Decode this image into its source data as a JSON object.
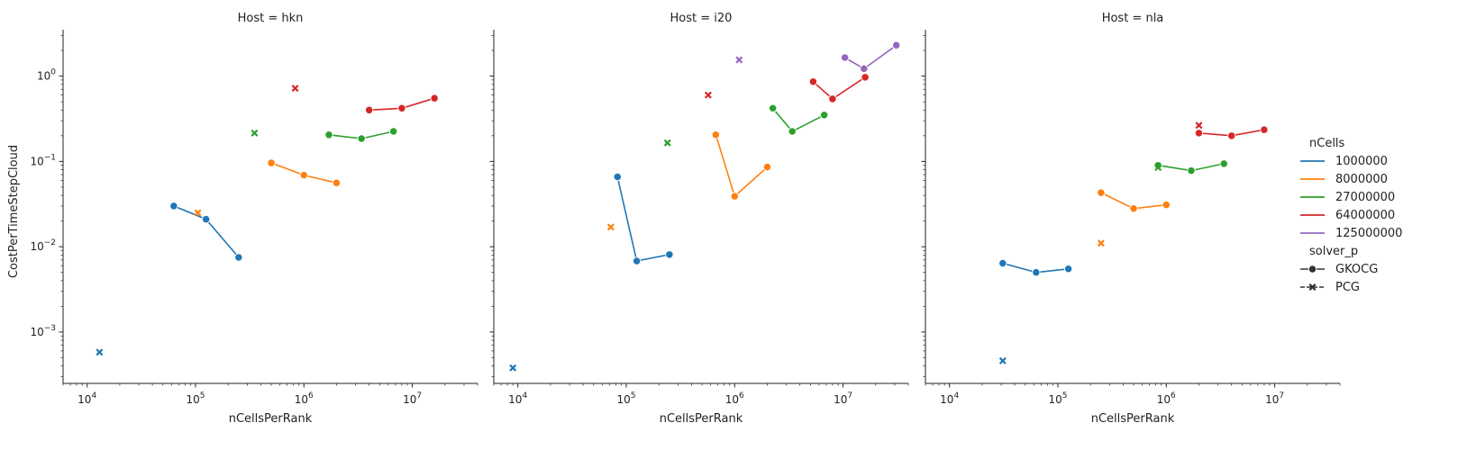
{
  "chart_data": {
    "type": "line",
    "scale": {
      "x": "log",
      "y": "log"
    },
    "xlim": [
      6000,
      40000000
    ],
    "ylim": [
      0.00025,
      3.5
    ],
    "xlabel": "nCellsPerRank",
    "ylabel": "CostPerTimeStepCloud",
    "x_ticks": [
      {
        "value": 10000,
        "base": "10",
        "exp": "4"
      },
      {
        "value": 100000,
        "base": "10",
        "exp": "5"
      },
      {
        "value": 1000000,
        "base": "10",
        "exp": "6"
      },
      {
        "value": 10000000,
        "base": "10",
        "exp": "7"
      }
    ],
    "y_ticks": [
      {
        "value": 0.001,
        "base": "10",
        "exp": "−3"
      },
      {
        "value": 0.01,
        "base": "10",
        "exp": "−2"
      },
      {
        "value": 0.1,
        "base": "10",
        "exp": "−1"
      },
      {
        "value": 1,
        "base": "10",
        "exp": "0"
      }
    ],
    "legend": {
      "placement": "right",
      "hue_title": "nCells",
      "hue_entries": [
        {
          "label": "1000000",
          "color": "#1f77b4"
        },
        {
          "label": "8000000",
          "color": "#ff7f0e"
        },
        {
          "label": "27000000",
          "color": "#2ca02c"
        },
        {
          "label": "64000000",
          "color": "#d62728"
        },
        {
          "label": "125000000",
          "color": "#9467bd"
        }
      ],
      "style_title": "solver_p",
      "style_entries": [
        {
          "label": "GKOCG",
          "marker": "circle"
        },
        {
          "label": "PCG",
          "marker": "x"
        }
      ]
    },
    "panels": [
      {
        "title": "Host = hkn",
        "series": [
          {
            "nCells": "1000000",
            "solver": "GKOCG",
            "points": [
              [
                63000,
                0.03
              ],
              [
                125000,
                0.021
              ],
              [
                250000,
                0.0075
              ]
            ]
          },
          {
            "nCells": "1000000",
            "solver": "PCG",
            "points": [
              [
                13000,
                0.00058
              ]
            ]
          },
          {
            "nCells": "8000000",
            "solver": "GKOCG",
            "points": [
              [
                500000,
                0.096
              ],
              [
                1000000,
                0.069
              ],
              [
                2000000,
                0.056
              ]
            ]
          },
          {
            "nCells": "8000000",
            "solver": "PCG",
            "points": [
              [
                105000,
                0.025
              ]
            ]
          },
          {
            "nCells": "27000000",
            "solver": "GKOCG",
            "points": [
              [
                1700000,
                0.205
              ],
              [
                3400000,
                0.185
              ],
              [
                6700000,
                0.225
              ]
            ]
          },
          {
            "nCells": "27000000",
            "solver": "PCG",
            "points": [
              [
                350000,
                0.215
              ]
            ]
          },
          {
            "nCells": "64000000",
            "solver": "GKOCG",
            "points": [
              [
                4000000,
                0.4
              ],
              [
                8000000,
                0.42
              ],
              [
                16000000,
                0.55
              ]
            ]
          },
          {
            "nCells": "64000000",
            "solver": "PCG",
            "points": [
              [
                830000,
                0.72
              ]
            ]
          }
        ]
      },
      {
        "title": "Host = i20",
        "series": [
          {
            "nCells": "1000000",
            "solver": "GKOCG",
            "points": [
              [
                83000,
                0.066
              ],
              [
                125000,
                0.0068
              ],
              [
                250000,
                0.0081
              ]
            ]
          },
          {
            "nCells": "1000000",
            "solver": "PCG",
            "points": [
              [
                9000,
                0.00038
              ]
            ]
          },
          {
            "nCells": "8000000",
            "solver": "GKOCG",
            "points": [
              [
                670000,
                0.205
              ],
              [
                1000000,
                0.039
              ],
              [
                2000000,
                0.086
              ]
            ]
          },
          {
            "nCells": "8000000",
            "solver": "PCG",
            "points": [
              [
                72000,
                0.017
              ]
            ]
          },
          {
            "nCells": "27000000",
            "solver": "GKOCG",
            "points": [
              [
                2250000,
                0.42
              ],
              [
                3400000,
                0.225
              ],
              [
                6700000,
                0.35
              ]
            ]
          },
          {
            "nCells": "27000000",
            "solver": "PCG",
            "points": [
              [
                240000,
                0.165
              ]
            ]
          },
          {
            "nCells": "64000000",
            "solver": "GKOCG",
            "points": [
              [
                5300000,
                0.86
              ],
              [
                8000000,
                0.54
              ],
              [
                16000000,
                0.97
              ]
            ]
          },
          {
            "nCells": "64000000",
            "solver": "PCG",
            "points": [
              [
                570000,
                0.6
              ]
            ]
          },
          {
            "nCells": "125000000",
            "solver": "GKOCG",
            "points": [
              [
                10400000,
                1.65
              ],
              [
                15600000,
                1.22
              ],
              [
                31000000,
                2.3
              ]
            ]
          },
          {
            "nCells": "125000000",
            "solver": "PCG",
            "points": [
              [
                1100000,
                1.55
              ]
            ]
          }
        ]
      },
      {
        "title": "Host = nla",
        "series": [
          {
            "nCells": "1000000",
            "solver": "GKOCG",
            "points": [
              [
                31000,
                0.0064
              ],
              [
                63000,
                0.005
              ],
              [
                125000,
                0.0055
              ]
            ]
          },
          {
            "nCells": "1000000",
            "solver": "PCG",
            "points": [
              [
                31000,
                0.00046
              ]
            ]
          },
          {
            "nCells": "8000000",
            "solver": "GKOCG",
            "points": [
              [
                250000,
                0.043
              ],
              [
                500000,
                0.028
              ],
              [
                1000000,
                0.031
              ]
            ]
          },
          {
            "nCells": "8000000",
            "solver": "PCG",
            "points": [
              [
                250000,
                0.011
              ]
            ]
          },
          {
            "nCells": "27000000",
            "solver": "GKOCG",
            "points": [
              [
                840000,
                0.09
              ],
              [
                1700000,
                0.078
              ],
              [
                3400000,
                0.094
              ]
            ]
          },
          {
            "nCells": "27000000",
            "solver": "PCG",
            "points": [
              [
                840000,
                0.085
              ]
            ]
          },
          {
            "nCells": "64000000",
            "solver": "GKOCG",
            "points": [
              [
                2000000,
                0.215
              ],
              [
                4000000,
                0.2
              ],
              [
                8000000,
                0.235
              ]
            ]
          },
          {
            "nCells": "64000000",
            "solver": "PCG",
            "points": [
              [
                2000000,
                0.265
              ]
            ]
          }
        ]
      }
    ]
  }
}
